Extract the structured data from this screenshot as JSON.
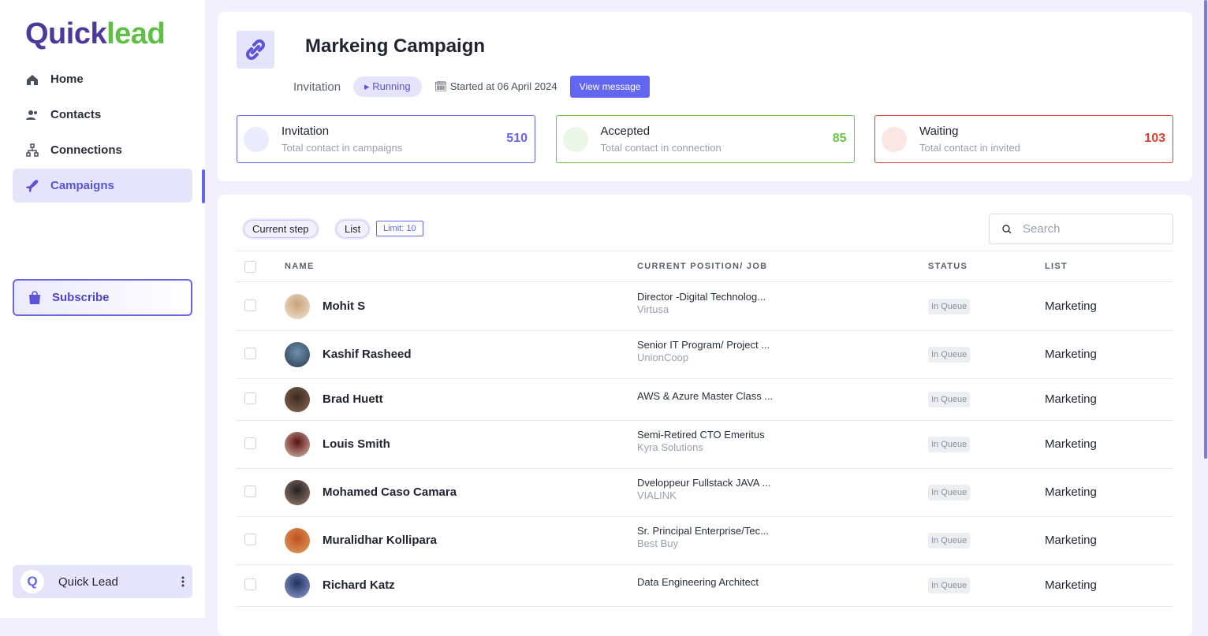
{
  "brand": {
    "first": "Quick",
    "second": "lead"
  },
  "nav": [
    {
      "label": "Home"
    },
    {
      "label": "Contacts"
    },
    {
      "label": "Connections"
    },
    {
      "label": "Campaigns",
      "active": true
    }
  ],
  "subscribe": "Subscribe",
  "account": {
    "initial": "Q",
    "name": "Quick Lead"
  },
  "campaign": {
    "title": "Markeing Campaign",
    "kind": "Invitation",
    "status": "Running",
    "started": "Started at 06 April 2024",
    "button": "View message"
  },
  "stats": [
    {
      "title": "Invitation",
      "subtitle": "Total contact in campaigns",
      "value": 510,
      "color": "#6366f1"
    },
    {
      "title": "Accepted",
      "subtitle": "Total contact in connection",
      "value": 85,
      "color": "#6cc644"
    },
    {
      "title": "Waiting",
      "subtitle": "Total contact in invited",
      "value": 103,
      "color": "#e0402e"
    }
  ],
  "toolbar": {
    "tabs": [
      "Current step",
      "List"
    ],
    "limit": "Limit: 10",
    "search": "Search"
  },
  "table": {
    "columns": [
      "NAME",
      "CURRENT POSITION/ JOB",
      "STATUS",
      "LIST"
    ],
    "rows": [
      {
        "name": "Mohit S",
        "position": "Director -Digital Technolog...",
        "company": "Virtusa",
        "status": "In Queue",
        "list": "Marketing"
      },
      {
        "name": "Kashif Rasheed",
        "position": "Senior IT Program/ Project ...",
        "company": "UnionCoop",
        "status": "In Queue",
        "list": "Marketing"
      },
      {
        "name": "Brad Huett",
        "position": "AWS & Azure Master Class ...",
        "status": "In Queue",
        "list": "Marketing"
      },
      {
        "name": "Louis Smith",
        "position": "Semi-Retired CTO Emeritus",
        "company": "Kyra Solutions",
        "status": "In Queue",
        "list": "Marketing"
      },
      {
        "name": "Mohamed Caso Camara",
        "position": "Dveloppeur Fullstack JAVA ...",
        "company": "VIALINK",
        "status": "In Queue",
        "list": "Marketing"
      },
      {
        "name": "Muralidhar Kollipara",
        "position": "Sr. Principal Enterprise/Tec...",
        "company": "Best Buy",
        "status": "In Queue",
        "list": "Marketing"
      },
      {
        "name": "Richard Katz",
        "position": "Data Engineering Architect",
        "status": "In Queue",
        "list": "Marketing"
      }
    ]
  }
}
